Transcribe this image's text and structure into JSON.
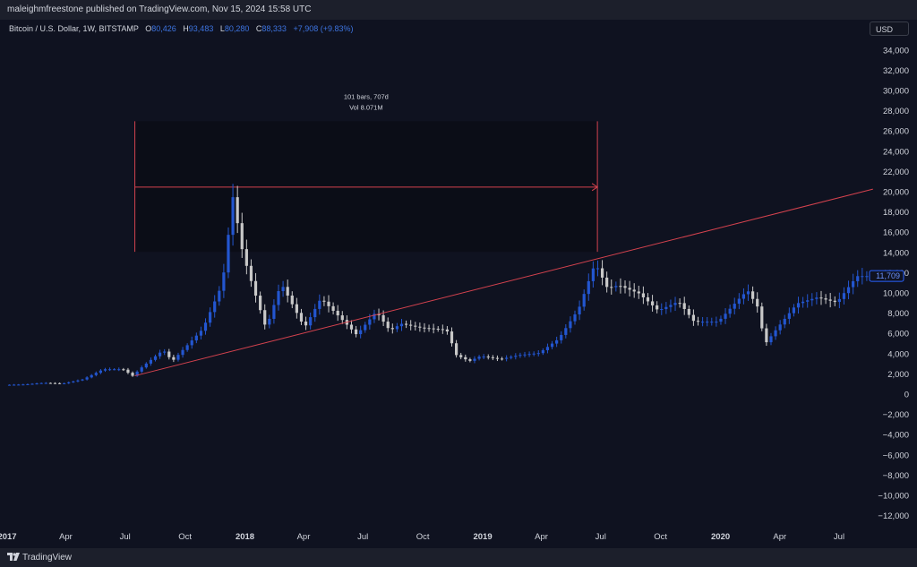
{
  "header": {
    "publisher_line": "maleighmfreestone published on TradingView.com, Nov 15, 2024 15:58 UTC"
  },
  "legend": {
    "symbol": "Bitcoin / U.S. Dollar, 1W, BITSTAMP",
    "o_label": "O",
    "o_value": "80,426",
    "h_label": "H",
    "h_value": "93,483",
    "l_label": "L",
    "l_value": "80,280",
    "c_label": "C",
    "c_value": "88,333",
    "change": "+7,908 (+9.83%)"
  },
  "price_axis": {
    "currency": "USD",
    "current_price_label": "11,709"
  },
  "footer": {
    "brand": "TradingView"
  },
  "colors": {
    "background": "#0f1220",
    "up_candle": "#2356d0",
    "down_candle": "#c8c8c8",
    "trend_line": "#d4424e",
    "range_box": "#0b0d17",
    "axis_text": "#d1d4dc",
    "price_tag": "#2962ff"
  },
  "chart_data": {
    "type": "candlestick",
    "interval": "1W",
    "y_axis": {
      "min": -13500,
      "max": 35000,
      "ticks": [
        34000,
        32000,
        30000,
        28000,
        26000,
        24000,
        22000,
        20000,
        18000,
        16000,
        14000,
        12000,
        10000,
        8000,
        6000,
        4000,
        2000,
        0,
        -2000,
        -4000,
        -6000,
        -8000,
        -10000,
        -12000
      ],
      "tick_labels": [
        "34,000",
        "32,000",
        "30,000",
        "28,000",
        "26,000",
        "24,000",
        "22,000",
        "20,000",
        "18,000",
        "16,000",
        "14,000",
        "12,000",
        "10,000",
        "8,000",
        "6,000",
        "4,000",
        "2,000",
        "0",
        "−2,000",
        "−4,000",
        "−6,000",
        "−8,000",
        "−10,000",
        "−12,000"
      ]
    },
    "x_axis": {
      "labels": [
        "2017",
        "Apr",
        "Jul",
        "Oct",
        "2018",
        "Apr",
        "Jul",
        "Oct",
        "2019",
        "Apr",
        "Jul",
        "Oct",
        "2020",
        "Apr",
        "Jul"
      ],
      "bold": [
        true,
        false,
        false,
        false,
        true,
        false,
        false,
        false,
        true,
        false,
        false,
        false,
        true,
        false,
        false
      ],
      "positions": [
        "2017-01-01",
        "2017-04-01",
        "2017-07-01",
        "2017-10-01",
        "2018-01-01",
        "2018-04-01",
        "2018-07-01",
        "2018-10-01",
        "2019-01-01",
        "2019-04-01",
        "2019-07-01",
        "2019-10-01",
        "2020-01-01",
        "2020-04-01",
        "2020-07-01"
      ]
    },
    "anchors": [
      [
        "2017-01-01",
        950
      ],
      [
        "2017-02-01",
        1000
      ],
      [
        "2017-03-01",
        1150
      ],
      [
        "2017-04-01",
        1100
      ],
      [
        "2017-05-01",
        1500
      ],
      [
        "2017-06-01",
        2500
      ],
      [
        "2017-07-01",
        2500
      ],
      [
        "2017-07-16",
        1850
      ],
      [
        "2017-08-01",
        2800
      ],
      [
        "2017-09-01",
        4400
      ],
      [
        "2017-09-15",
        3300
      ],
      [
        "2017-10-01",
        4400
      ],
      [
        "2017-11-01",
        6500
      ],
      [
        "2017-12-01",
        11000
      ],
      [
        "2017-12-17",
        19500
      ],
      [
        "2018-01-01",
        14000
      ],
      [
        "2018-01-15",
        11000
      ],
      [
        "2018-02-06",
        6500
      ],
      [
        "2018-03-01",
        11000
      ],
      [
        "2018-04-06",
        6600
      ],
      [
        "2018-05-01",
        9500
      ],
      [
        "2018-06-01",
        7500
      ],
      [
        "2018-06-25",
        5900
      ],
      [
        "2018-07-25",
        8200
      ],
      [
        "2018-08-15",
        6300
      ],
      [
        "2018-09-01",
        7000
      ],
      [
        "2018-10-01",
        6600
      ],
      [
        "2018-11-10",
        6400
      ],
      [
        "2018-11-25",
        3900
      ],
      [
        "2018-12-15",
        3300
      ],
      [
        "2019-01-01",
        3800
      ],
      [
        "2019-02-01",
        3500
      ],
      [
        "2019-03-01",
        3900
      ],
      [
        "2019-04-01",
        4100
      ],
      [
        "2019-05-01",
        5500
      ],
      [
        "2019-06-01",
        8500
      ],
      [
        "2019-06-26",
        13000
      ],
      [
        "2019-07-15",
        10500
      ],
      [
        "2019-08-01",
        10800
      ],
      [
        "2019-09-01",
        10000
      ],
      [
        "2019-10-01",
        8300
      ],
      [
        "2019-11-01",
        9200
      ],
      [
        "2019-11-25",
        7200
      ],
      [
        "2019-12-15",
        7200
      ],
      [
        "2020-01-01",
        7200
      ],
      [
        "2020-02-01",
        9400
      ],
      [
        "2020-02-15",
        10300
      ],
      [
        "2020-03-01",
        8700
      ],
      [
        "2020-03-13",
        5000
      ],
      [
        "2020-04-01",
        6600
      ],
      [
        "2020-05-01",
        9000
      ],
      [
        "2020-06-01",
        9600
      ],
      [
        "2020-07-01",
        9100
      ],
      [
        "2020-08-01",
        11700
      ]
    ],
    "trend_line": {
      "start": [
        "2017-07-16",
        1850
      ],
      "end": [
        "2020-08-22",
        20300
      ]
    },
    "range_measure": {
      "start": "2017-07-16",
      "end": "2019-06-26",
      "top_price": 27000,
      "bottom_price": 14100,
      "arrow_price": 20500,
      "bars_label": "101 bars, 707d",
      "vol_label": "Vol 8.071M"
    },
    "last_price": 11709
  }
}
